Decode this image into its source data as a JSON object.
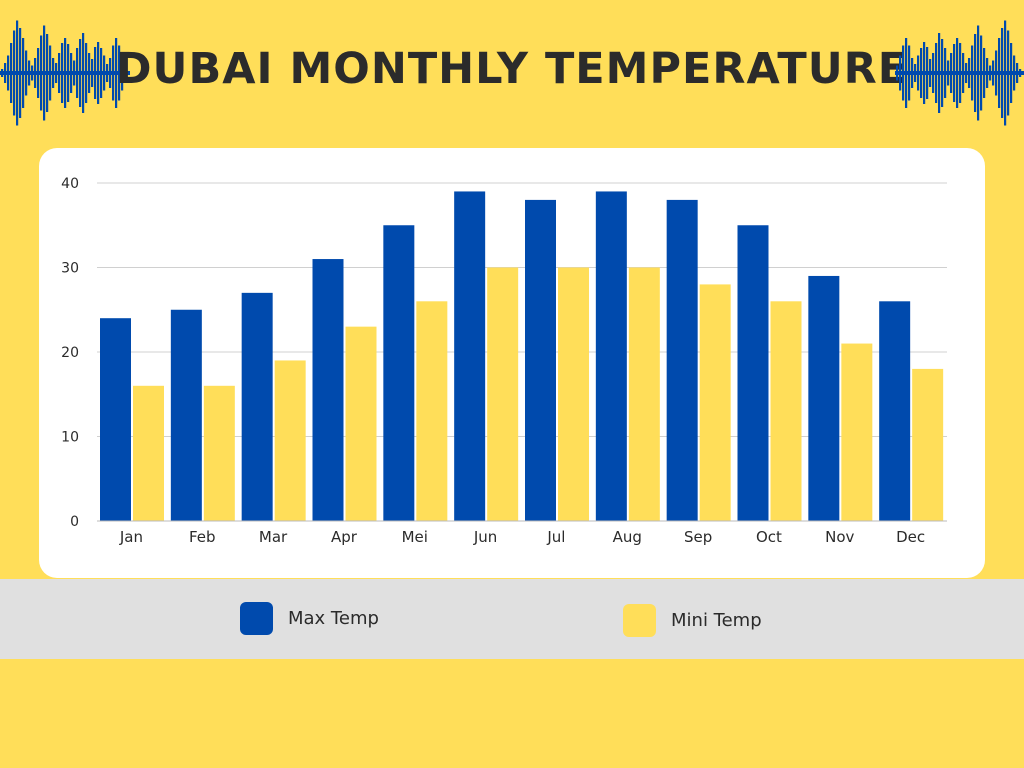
{
  "title": "DUBAI MONTHLY TEMPERATURE",
  "colors": {
    "background": "#ffde59",
    "max": "#004aad",
    "min": "#ffde59",
    "legend_band": "#e0e0e0"
  },
  "decorations": [
    "sound-wave-icon-left",
    "sound-wave-icon-right"
  ],
  "chart_data": {
    "type": "bar",
    "title": "DUBAI MONTHLY TEMPERATURE",
    "categories": [
      "Jan",
      "Feb",
      "Mar",
      "Apr",
      "Mei",
      "Jun",
      "Jul",
      "Aug",
      "Sep",
      "Oct",
      "Nov",
      "Dec"
    ],
    "series": [
      {
        "name": "Max Temp",
        "color": "#004aad",
        "values": [
          24,
          25,
          27,
          31,
          35,
          39,
          38,
          39,
          38,
          35,
          29,
          26
        ]
      },
      {
        "name": "Mini Temp",
        "color": "#ffde59",
        "values": [
          16,
          16,
          19,
          23,
          26,
          30,
          30,
          30,
          28,
          26,
          21,
          18
        ]
      }
    ],
    "ylim": [
      0,
      40
    ],
    "yticks": [
      0,
      10,
      20,
      30,
      40
    ],
    "grid": true,
    "legend_position": "bottom",
    "xlabel": "",
    "ylabel": ""
  }
}
